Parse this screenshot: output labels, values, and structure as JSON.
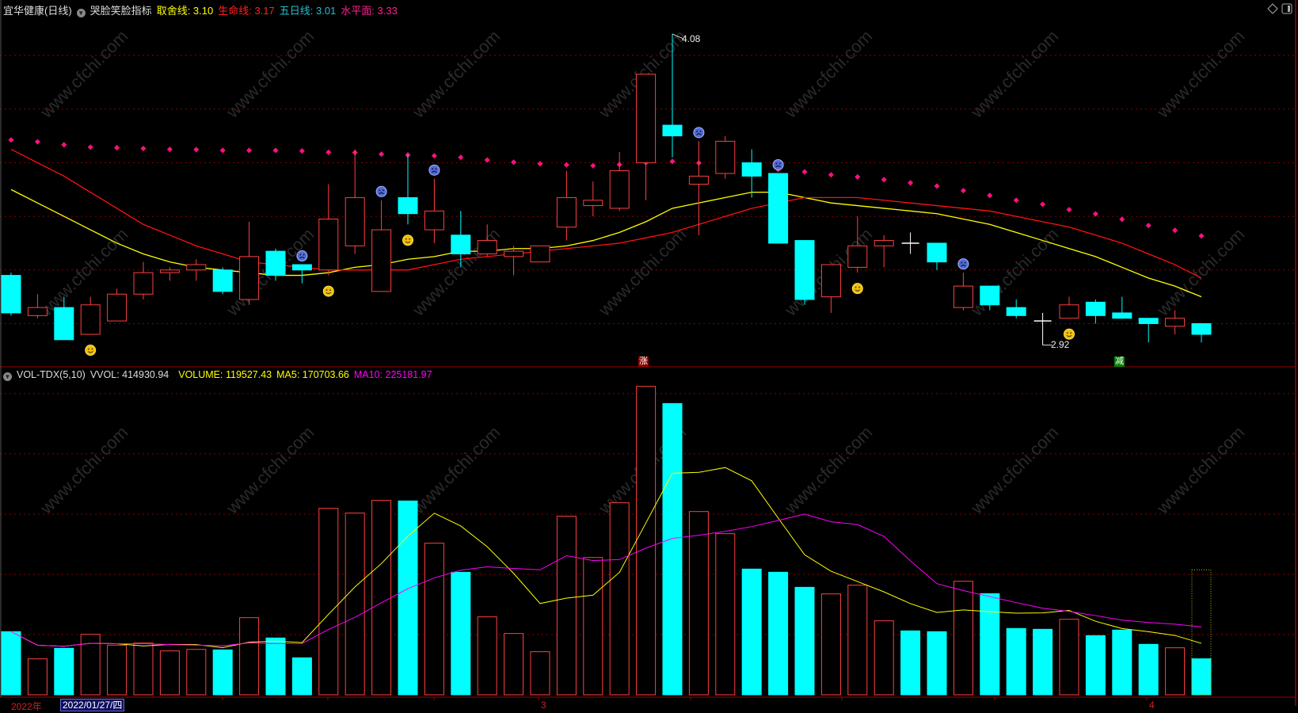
{
  "header": {
    "title": "宜华健康(日线)",
    "indicator": "哭脸笑脸指标",
    "items": [
      {
        "label": "取舍线: 3.10",
        "color": "#ffff00"
      },
      {
        "label": "生命线: 3.17",
        "color": "#ff2020"
      },
      {
        "label": "五日线: 3.01",
        "color": "#20c0d0"
      },
      {
        "label": "水平面: 3.33",
        "color": "#ff2090"
      }
    ]
  },
  "volume_header": {
    "name": "VOL-TDX(5,10)",
    "vvol": "VVOL: 414930.94",
    "volume": "VOLUME: 119527.43",
    "ma5": "MA5: 170703.66",
    "ma10": "MA10: 225181.97"
  },
  "markers": {
    "up_tag": "涨",
    "down_tag": "减",
    "high_label": "4.08",
    "low_label": "2.92"
  },
  "xaxis": {
    "year": "2022年",
    "cursor_date": "2022/01/27/四",
    "month3": "3",
    "month4": "4"
  },
  "watermark": "www.cfchi.com",
  "colors": {
    "up": "#ff4040",
    "down": "#00ffff",
    "doji": "#ffffff",
    "ma_yellow": "#ffff00",
    "ma_red": "#ff1010",
    "level_dots": "#ff1080",
    "vol_ma5": "#ffff00",
    "vol_ma10": "#ff00ff",
    "grid": "#8b0000"
  },
  "chart_data": [
    {
      "type": "candlestick",
      "title": "宜华健康(日线)",
      "ylim": [
        2.9,
        4.1
      ],
      "yticks": [
        3.0,
        3.2,
        3.4,
        3.6,
        3.8,
        4.0
      ],
      "grid": true,
      "candles": [
        [
          3.18,
          3.19,
          3.03,
          3.04
        ],
        [
          3.03,
          3.11,
          3.02,
          3.06
        ],
        [
          3.06,
          3.1,
          2.94,
          2.94
        ],
        [
          2.96,
          3.1,
          2.96,
          3.07
        ],
        [
          3.01,
          3.13,
          3.01,
          3.11
        ],
        [
          3.11,
          3.23,
          3.09,
          3.19
        ],
        [
          3.19,
          3.21,
          3.16,
          3.2
        ],
        [
          3.2,
          3.24,
          3.16,
          3.22
        ],
        [
          3.2,
          3.21,
          3.11,
          3.12
        ],
        [
          3.09,
          3.38,
          3.07,
          3.25
        ],
        [
          3.27,
          3.28,
          3.16,
          3.18
        ],
        [
          3.22,
          3.22,
          3.15,
          3.2
        ],
        [
          3.2,
          3.52,
          3.18,
          3.39
        ],
        [
          3.29,
          3.65,
          3.26,
          3.47
        ],
        [
          3.12,
          3.46,
          3.12,
          3.35
        ],
        [
          3.47,
          3.63,
          3.37,
          3.41
        ],
        [
          3.35,
          3.54,
          3.3,
          3.42
        ],
        [
          3.33,
          3.42,
          3.21,
          3.26
        ],
        [
          3.26,
          3.37,
          3.25,
          3.31
        ],
        [
          3.25,
          3.29,
          3.18,
          3.27
        ],
        [
          3.23,
          3.29,
          3.23,
          3.29
        ],
        [
          3.36,
          3.57,
          3.31,
          3.47
        ],
        [
          3.44,
          3.53,
          3.4,
          3.46
        ],
        [
          3.43,
          3.64,
          3.42,
          3.57
        ],
        [
          3.6,
          3.93,
          3.46,
          3.93
        ],
        [
          3.74,
          4.08,
          3.62,
          3.7
        ],
        [
          3.52,
          3.68,
          3.33,
          3.55
        ],
        [
          3.56,
          3.7,
          3.54,
          3.68
        ],
        [
          3.6,
          3.65,
          3.47,
          3.55
        ],
        [
          3.56,
          3.56,
          3.3,
          3.3
        ],
        [
          3.31,
          3.31,
          3.07,
          3.09
        ],
        [
          3.1,
          3.22,
          3.04,
          3.22
        ],
        [
          3.21,
          3.4,
          3.19,
          3.29
        ],
        [
          3.29,
          3.33,
          3.21,
          3.31
        ],
        [
          3.3,
          3.34,
          3.26,
          3.3
        ],
        [
          3.3,
          3.3,
          3.2,
          3.23
        ],
        [
          3.06,
          3.19,
          3.05,
          3.14
        ],
        [
          3.14,
          3.14,
          3.05,
          3.07
        ],
        [
          3.06,
          3.09,
          3.02,
          3.03
        ],
        [
          3.01,
          3.04,
          2.92,
          3.01
        ],
        [
          3.02,
          3.1,
          3.02,
          3.07
        ],
        [
          3.08,
          3.09,
          3.0,
          3.03
        ],
        [
          3.04,
          3.1,
          3.02,
          3.02
        ],
        [
          3.02,
          3.02,
          2.93,
          3.0
        ],
        [
          2.99,
          3.05,
          2.96,
          3.02
        ],
        [
          3.0,
          3.0,
          2.93,
          2.96
        ]
      ],
      "candle_fields": [
        "open",
        "high",
        "low",
        "close"
      ],
      "series": [
        {
          "name": "取舍线",
          "type": "line",
          "color": "#ffff00",
          "values": [
            3.5,
            3.45,
            3.4,
            3.35,
            3.3,
            3.26,
            3.23,
            3.21,
            3.2,
            3.19,
            3.18,
            3.18,
            3.19,
            3.21,
            3.22,
            3.24,
            3.25,
            3.27,
            3.27,
            3.28,
            3.28,
            3.29,
            3.31,
            3.34,
            3.38,
            3.43,
            3.45,
            3.47,
            3.49,
            3.49,
            3.47,
            3.45,
            3.44,
            3.43,
            3.42,
            3.41,
            3.39,
            3.37,
            3.34,
            3.31,
            3.28,
            3.25,
            3.21,
            3.17,
            3.14,
            3.1
          ]
        },
        {
          "name": "生命线",
          "type": "line",
          "color": "#ff1010",
          "values": [
            3.65,
            3.6,
            3.55,
            3.49,
            3.43,
            3.37,
            3.33,
            3.29,
            3.26,
            3.23,
            3.22,
            3.21,
            3.2,
            3.2,
            3.2,
            3.2,
            3.22,
            3.24,
            3.25,
            3.26,
            3.27,
            3.28,
            3.29,
            3.3,
            3.32,
            3.34,
            3.37,
            3.4,
            3.43,
            3.45,
            3.47,
            3.47,
            3.47,
            3.46,
            3.45,
            3.44,
            3.43,
            3.42,
            3.4,
            3.38,
            3.36,
            3.33,
            3.3,
            3.26,
            3.22,
            3.17
          ]
        },
        {
          "name": "水平面",
          "type": "dots",
          "color": "#ff1080",
          "values": [
            3.685,
            3.678,
            3.667,
            3.658,
            3.656,
            3.653,
            3.65,
            3.649,
            3.646,
            3.646,
            3.646,
            3.644,
            3.639,
            3.638,
            3.632,
            3.629,
            3.626,
            3.62,
            3.61,
            3.602,
            3.596,
            3.592,
            3.589,
            3.593,
            3.6,
            3.605,
            3.599,
            3.596,
            3.586,
            3.575,
            3.566,
            3.555,
            3.547,
            3.537,
            3.525,
            3.513,
            3.496,
            3.478,
            3.46,
            3.445,
            3.425,
            3.409,
            3.389,
            3.366,
            3.348,
            3.327
          ]
        }
      ],
      "sad_faces": [
        11,
        14,
        16,
        26,
        29,
        36
      ],
      "smile_faces": [
        3,
        12,
        15,
        32,
        40
      ],
      "annotations": [
        {
          "text": "4.08",
          "index": 25,
          "at": "high"
        },
        {
          "text": "2.92",
          "index": 39,
          "at": "low"
        },
        {
          "text": "涨",
          "index": 24
        },
        {
          "text": "减",
          "index": 42
        }
      ]
    },
    {
      "type": "bar",
      "title": "VOL-TDX(5,10)",
      "ylim": [
        0,
        1050000
      ],
      "grid": true,
      "values": [
        209600,
        119300,
        154400,
        200800,
        164900,
        171900,
        145600,
        150800,
        149100,
        256100,
        188600,
        122800,
        619200,
        603400,
        645500,
        643700,
        503400,
        406900,
        258700,
        203500,
        143000,
        592900,
        456000,
        637600,
        1024300,
        967300,
        608600,
        535000,
        417500,
        406900,
        356900,
        335000,
        364000,
        245600,
        212200,
        209600,
        377100,
        335900,
        220100,
        217500,
        250800,
        196400,
        214900,
        167500,
        156100,
        119527.43
      ],
      "vvol": 414930.94,
      "ma": [
        {
          "name": "MA5",
          "period": 5,
          "color": "#ffff00"
        },
        {
          "name": "MA10",
          "period": 10,
          "color": "#ff00ff"
        }
      ]
    }
  ]
}
